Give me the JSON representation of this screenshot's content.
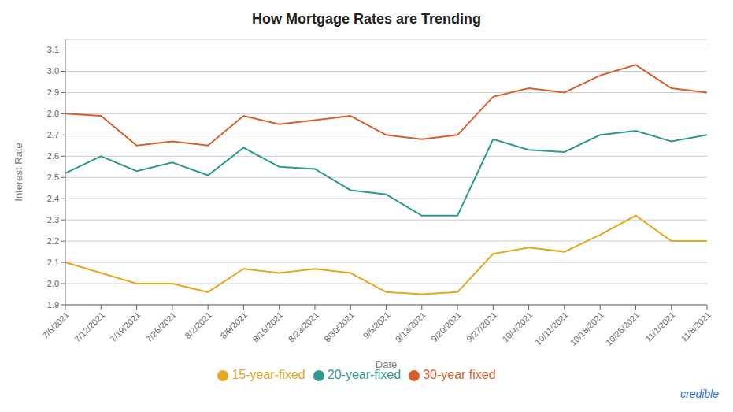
{
  "chart_data": {
    "type": "line",
    "title": "How Mortgage Rates are Trending",
    "xlabel": "Date",
    "ylabel": "Interest Rate",
    "categories": [
      "7/6/2021",
      "7/12/2021",
      "7/19/2021",
      "7/26/2021",
      "8/2/2021",
      "8/9/2021",
      "8/16/2021",
      "8/23/2021",
      "8/30/2021",
      "9/6/2021",
      "9/13/2021",
      "9/20/2021",
      "9/27/2021",
      "10/4/2021",
      "10/11/2021",
      "10/18/2021",
      "10/25/2021",
      "11/1/2021",
      "11/8/2021"
    ],
    "series": [
      {
        "name": "30-year fixed",
        "color": "#d85f2b",
        "values": [
          2.8,
          2.79,
          2.65,
          2.67,
          2.65,
          2.79,
          2.75,
          2.77,
          2.79,
          2.7,
          2.68,
          2.7,
          2.88,
          2.92,
          2.9,
          2.98,
          3.03,
          2.92,
          2.9
        ]
      },
      {
        "name": "20-year-fixed",
        "color": "#2e9b8f",
        "values": [
          2.52,
          2.6,
          2.53,
          2.57,
          2.51,
          2.64,
          2.55,
          2.54,
          2.44,
          2.42,
          2.32,
          2.32,
          2.68,
          2.63,
          2.62,
          2.7,
          2.72,
          2.67,
          2.7
        ]
      },
      {
        "name": "15-year-fixed",
        "color": "#e6a81e",
        "values": [
          2.1,
          2.05,
          2.0,
          2.0,
          1.96,
          2.07,
          2.05,
          2.07,
          2.05,
          1.96,
          1.95,
          1.96,
          2.14,
          2.17,
          2.15,
          2.23,
          2.32,
          2.2,
          2.2
        ]
      }
    ],
    "ylim": [
      1.9,
      3.15
    ],
    "yticks": [
      1.9,
      {
        "value": 2.0,
        "label": "2.0"
      },
      2.1,
      2.2,
      2.3,
      2.4,
      2.5,
      2.6,
      2.7,
      2.8,
      2.9,
      {
        "value": 3.0,
        "label": "3.0"
      },
      3.1
    ],
    "grid": true,
    "legend": "bottom",
    "annotations": [
      {
        "text": "credible",
        "color": "#1a73e8"
      }
    ]
  }
}
